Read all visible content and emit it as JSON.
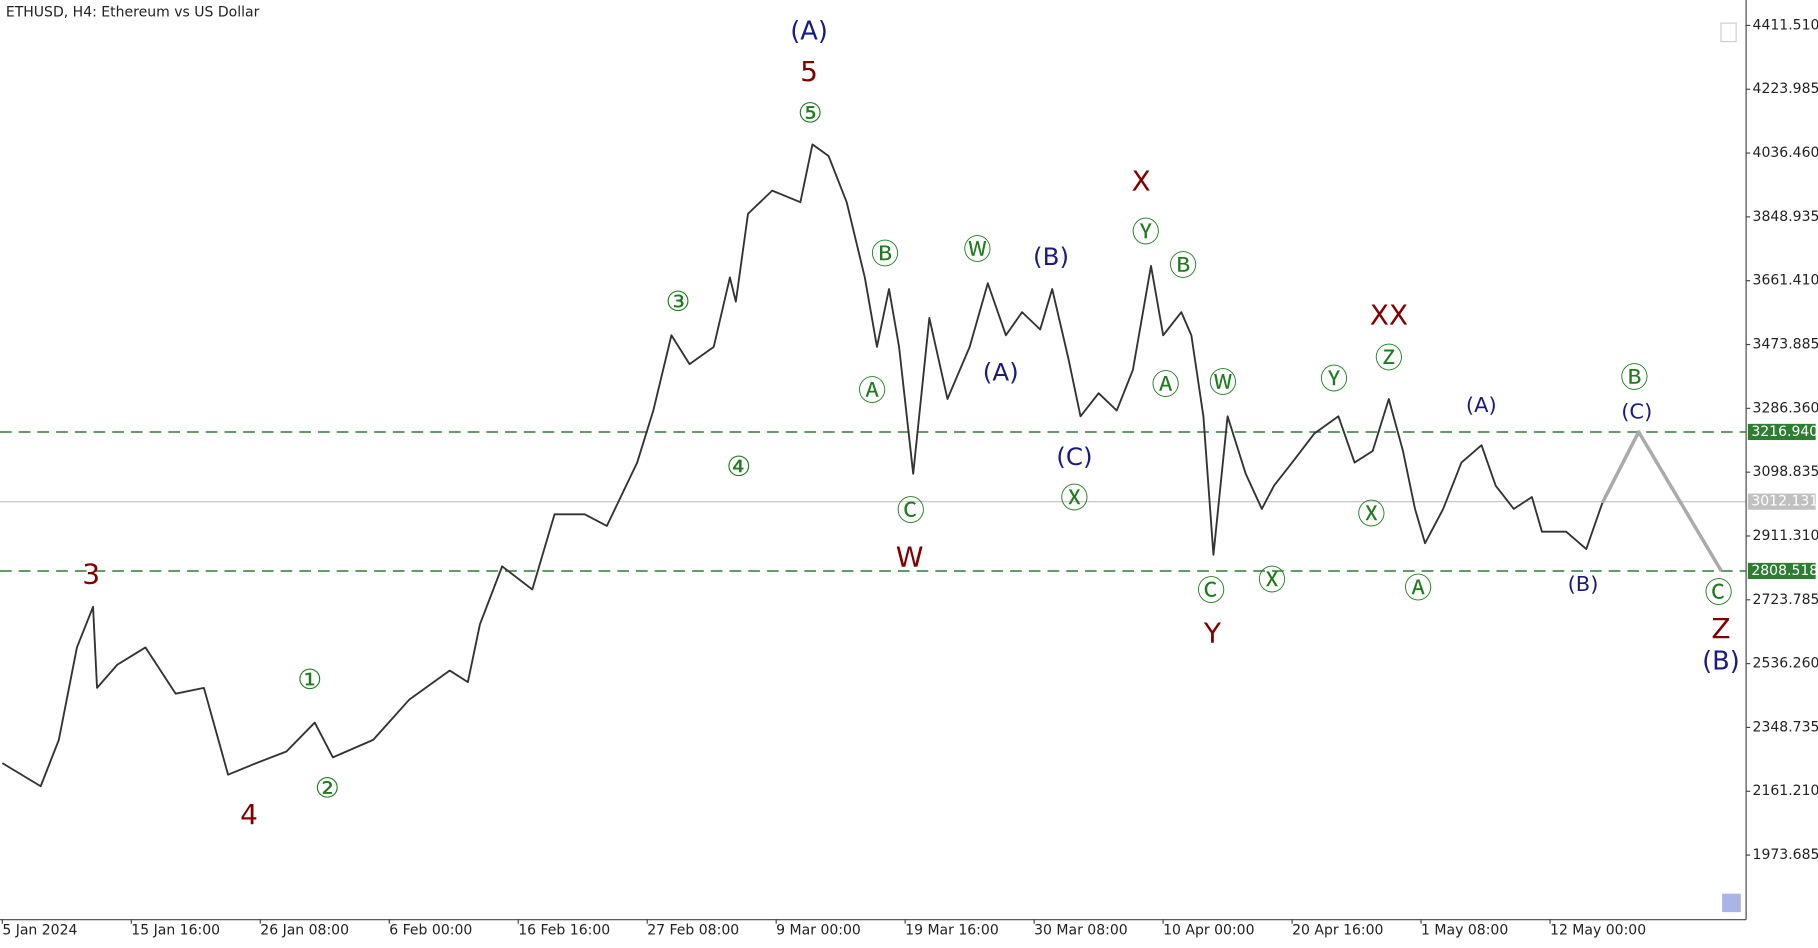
{
  "chart_data": {
    "type": "line",
    "title": "ETHUSD, H4:  Ethereum vs US Dollar",
    "xlim": [
      0,
      865
    ],
    "xticks": [
      {
        "value": 0,
        "label": "5 Jan 2024"
      },
      {
        "value": 64,
        "label": "15 Jan 16:00"
      },
      {
        "value": 128,
        "label": "26 Jan 08:00"
      },
      {
        "value": 192,
        "label": "6 Feb 00:00"
      },
      {
        "value": 256,
        "label": "16 Feb 16:00"
      },
      {
        "value": 320,
        "label": "27 Feb 08:00"
      },
      {
        "value": 384,
        "label": "9 Mar 00:00"
      },
      {
        "value": 448,
        "label": "19 Mar 16:00"
      },
      {
        "value": 512,
        "label": "30 Mar 08:00"
      },
      {
        "value": 576,
        "label": "10 Apr 00:00"
      },
      {
        "value": 640,
        "label": "20 Apr 16:00"
      },
      {
        "value": 704,
        "label": "1 May 08:00"
      },
      {
        "value": 768,
        "label": "12 May 00:00"
      }
    ],
    "ylim": [
      1785.6,
      4486.2
    ],
    "yticks": [
      {
        "value": 4411.51,
        "label": "4411.510"
      },
      4223.985,
      {
        "value": 4036.46,
        "label": "4036.460"
      },
      3848.935,
      {
        "value": 3661.41,
        "label": "3661.410"
      },
      3473.885,
      {
        "value": 3286.36,
        "label": "3286.360"
      },
      3098.835,
      {
        "value": 2911.31,
        "label": "2911.310"
      },
      2723.785,
      {
        "value": 2536.26,
        "label": "2536.260"
      },
      2348.735,
      {
        "value": 2161.21,
        "label": "2161.210"
      },
      1973.685
    ],
    "series": [
      {
        "color": "#333333",
        "x": [
          0,
          19,
          28,
          37,
          45,
          47,
          57,
          71,
          86,
          100,
          112,
          126,
          141,
          155,
          164,
          184,
          202,
          222,
          231,
          237,
          248,
          263,
          274,
          289,
          300,
          315,
          323,
          332,
          341,
          353,
          361,
          364,
          370,
          382,
          396,
          402,
          410,
          419,
          428,
          434,
          440,
          445,
          452,
          460,
          469,
          480,
          489,
          498,
          506,
          515,
          521,
          529,
          535,
          544,
          553,
          561,
          570,
          576,
          585,
          590,
          596,
          601,
          608,
          617,
          625,
          631,
          640,
          651,
          663,
          671,
          680,
          688,
          695,
          701,
          706,
          715,
          724,
          734,
          741,
          750,
          759,
          764,
          776,
          786,
          794
        ],
        "values": [
          2244,
          2176,
          2312,
          2584,
          2703,
          2465,
          2533,
          2584,
          2448,
          2465,
          2210,
          2244,
          2278,
          2363,
          2261,
          2312,
          2431,
          2516,
          2482,
          2652,
          2822,
          2754,
          2975,
          2975,
          2941,
          3127,
          3280,
          3501,
          3416,
          3467,
          3671,
          3600,
          3858,
          3926,
          3892,
          4062,
          4028,
          3892,
          3671,
          3467,
          3637,
          3467,
          3094,
          3552,
          3314,
          3467,
          3654,
          3501,
          3569,
          3518,
          3637,
          3433,
          3263,
          3331,
          3280,
          3399,
          3705,
          3501,
          3569,
          3501,
          3263,
          2856,
          3263,
          3094,
          2991,
          3059,
          3127,
          3212,
          3263,
          3127,
          3161,
          3314,
          3161,
          2991,
          2890,
          2991,
          3127,
          3178,
          3059,
          2991,
          3026,
          2924,
          2924,
          2873,
          3009
        ]
      },
      {
        "color": "#aaaaaa",
        "x": [
          794,
          812,
          853
        ],
        "values": [
          3009,
          3216.94,
          2808.518
        ]
      }
    ],
    "levels": [
      {
        "value": 3216.94,
        "label": "3216.940",
        "color": "#2e7d32",
        "dashed": true
      },
      {
        "value": 2808.518,
        "label": "2808.518",
        "color": "#2e7d32",
        "dashed": true
      },
      {
        "value": 3012.131,
        "label": "3012.131",
        "color": "#c0c0c0",
        "dashed": false
      }
    ],
    "annotations": [
      {
        "text": "(A)",
        "color": "#1a1a80"
      },
      {
        "text": "5",
        "color": "#800000"
      },
      {
        "text": "⑤",
        "color": "#1e7b1e"
      },
      {
        "text": "3",
        "color": "#800000"
      },
      {
        "text": "4",
        "color": "#800000"
      },
      {
        "text": "①",
        "color": "#1e7b1e"
      },
      {
        "text": "②",
        "color": "#1e7b1e"
      },
      {
        "text": "③",
        "color": "#1e7b1e"
      },
      {
        "text": "④",
        "color": "#1e7b1e"
      },
      {
        "text": "Ⓑ",
        "color": "#1e7b1e"
      },
      {
        "text": "Ⓐ",
        "color": "#1e7b1e"
      },
      {
        "text": "Ⓒ",
        "color": "#1e7b1e"
      },
      {
        "text": "W",
        "color": "#800000"
      },
      {
        "text": "Ⓦ",
        "color": "#1e7b1e"
      },
      {
        "text": "(B)",
        "color": "#1a1a80"
      },
      {
        "text": "(A)",
        "color": "#1a1a80"
      },
      {
        "text": "(C)",
        "color": "#1a1a80"
      },
      {
        "text": "Ⓧ",
        "color": "#1e7b1e"
      },
      {
        "text": "X",
        "color": "#800000"
      },
      {
        "text": "Ⓨ",
        "color": "#1e7b1e"
      },
      {
        "text": "Ⓑ",
        "color": "#1e7b1e"
      },
      {
        "text": "Ⓐ",
        "color": "#1e7b1e"
      },
      {
        "text": "Ⓦ",
        "color": "#1e7b1e"
      },
      {
        "text": "Ⓒ",
        "color": "#1e7b1e"
      },
      {
        "text": "Y",
        "color": "#800000"
      },
      {
        "text": "Ⓧ",
        "color": "#1e7b1e"
      },
      {
        "text": "Ⓨ",
        "color": "#1e7b1e"
      },
      {
        "text": "Ⓧ",
        "color": "#1e7b1e"
      },
      {
        "text": "XX",
        "color": "#800000"
      },
      {
        "text": "Ⓩ",
        "color": "#1e7b1e"
      },
      {
        "text": "Ⓐ",
        "color": "#1e7b1e"
      },
      {
        "text": "(A)",
        "color": "#1a1a80"
      },
      {
        "text": "(B)",
        "color": "#1a1a80"
      },
      {
        "text": "Ⓑ",
        "color": "#1e7b1e"
      },
      {
        "text": "(C)",
        "color": "#1a1a80"
      },
      {
        "text": "Ⓒ",
        "color": "#1e7b1e"
      },
      {
        "text": "Z",
        "color": "#800000"
      },
      {
        "text": "(B)",
        "color": "#1a1a80"
      }
    ]
  }
}
